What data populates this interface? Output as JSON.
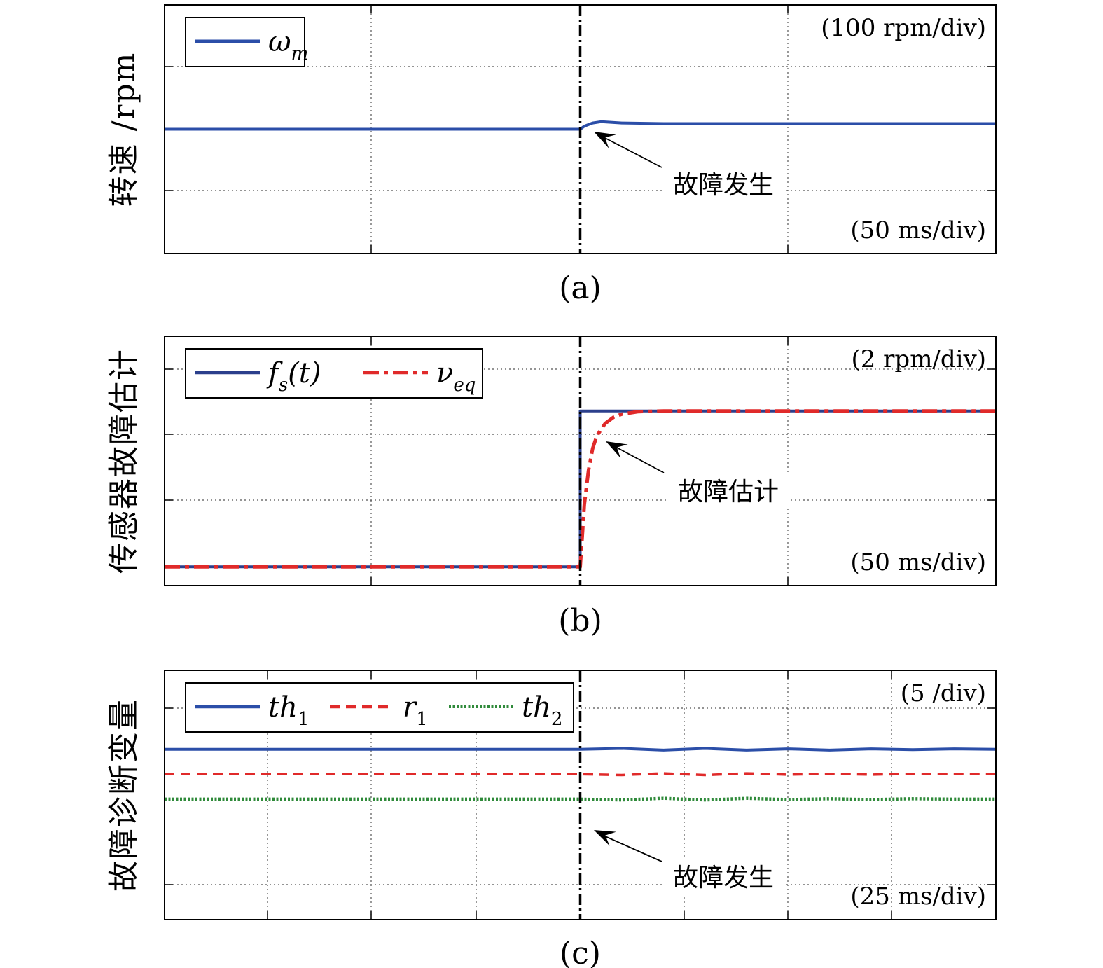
{
  "chart_data": [
    {
      "type": "line",
      "panel_label": "(a)",
      "ylabel": "转速 /rpm",
      "y_scale_text": "(100 rpm/div)",
      "x_scale_text": "(50 ms/div)",
      "annotation": "故障发生",
      "grid": true,
      "legend_position": "top-left",
      "xlim": [
        0,
        200
      ],
      "ylim": [
        0,
        4
      ],
      "fault_time": 100,
      "series": [
        {
          "name": "ω",
          "sub": "m",
          "color": "#2b4ea8",
          "style": "solid",
          "x": [
            0,
            20,
            40,
            60,
            80,
            99,
            100,
            101,
            103,
            105,
            110,
            120,
            140,
            160,
            180,
            200
          ],
          "y": [
            2.0,
            2.0,
            2.0,
            2.0,
            2.0,
            2.0,
            2.0,
            2.05,
            2.1,
            2.12,
            2.1,
            2.09,
            2.09,
            2.09,
            2.09,
            2.09
          ]
        }
      ]
    },
    {
      "type": "line",
      "panel_label": "(b)",
      "ylabel": "传感器故障估计",
      "y_scale_text": "(2 rpm/div)",
      "x_scale_text": "(50 ms/div)",
      "annotation": "故障估计",
      "grid": true,
      "legend_position": "top-left",
      "xlim": [
        0,
        200
      ],
      "ylim": [
        0,
        4
      ],
      "fault_time": 100,
      "series": [
        {
          "name": "f",
          "sub": "s",
          "suffix": "(t)",
          "color": "#2b3f8c",
          "style": "solid",
          "x": [
            0,
            100,
            100,
            200
          ],
          "y": [
            0.3,
            0.3,
            2.8,
            2.8
          ]
        },
        {
          "name": "ν",
          "sub": "eq",
          "color": "#e02a2a",
          "style": "dashdot",
          "x": [
            0,
            100,
            100.5,
            101,
            102,
            103,
            104,
            106,
            108,
            110,
            114,
            120,
            140,
            200
          ],
          "y": [
            0.3,
            0.3,
            0.8,
            1.3,
            1.85,
            2.2,
            2.4,
            2.6,
            2.7,
            2.75,
            2.79,
            2.8,
            2.8,
            2.8
          ]
        }
      ]
    },
    {
      "type": "line",
      "panel_label": "(c)",
      "ylabel": "故障诊断变量",
      "y_scale_text": "(5 /div)",
      "x_scale_text": "(25 ms/div)",
      "annotation": "故障发生",
      "grid": true,
      "legend_position": "top-left",
      "xlim": [
        0,
        200
      ],
      "ylim": [
        0,
        6
      ],
      "fault_time": 100,
      "series": [
        {
          "name": "th",
          "sub": "1",
          "color": "#2b4ea8",
          "style": "solid",
          "x": [
            0,
            50,
            100,
            110,
            120,
            130,
            140,
            150,
            160,
            170,
            180,
            190,
            200
          ],
          "y": [
            4.1,
            4.1,
            4.1,
            4.12,
            4.08,
            4.12,
            4.08,
            4.11,
            4.08,
            4.11,
            4.09,
            4.11,
            4.1
          ]
        },
        {
          "name": "r",
          "sub": "1",
          "color": "#e02a2a",
          "style": "dashed",
          "x": [
            0,
            50,
            100,
            110,
            120,
            130,
            140,
            150,
            160,
            170,
            180,
            190,
            200
          ],
          "y": [
            3.5,
            3.5,
            3.5,
            3.48,
            3.52,
            3.48,
            3.52,
            3.49,
            3.51,
            3.49,
            3.51,
            3.5,
            3.5
          ]
        },
        {
          "name": "th",
          "sub": "2",
          "color": "#2f8a3a",
          "style": "dotted",
          "x": [
            0,
            50,
            100,
            110,
            120,
            130,
            140,
            150,
            160,
            170,
            180,
            190,
            200
          ],
          "y": [
            2.9,
            2.9,
            2.9,
            2.88,
            2.92,
            2.88,
            2.92,
            2.89,
            2.91,
            2.89,
            2.91,
            2.9,
            2.9
          ]
        }
      ]
    }
  ]
}
